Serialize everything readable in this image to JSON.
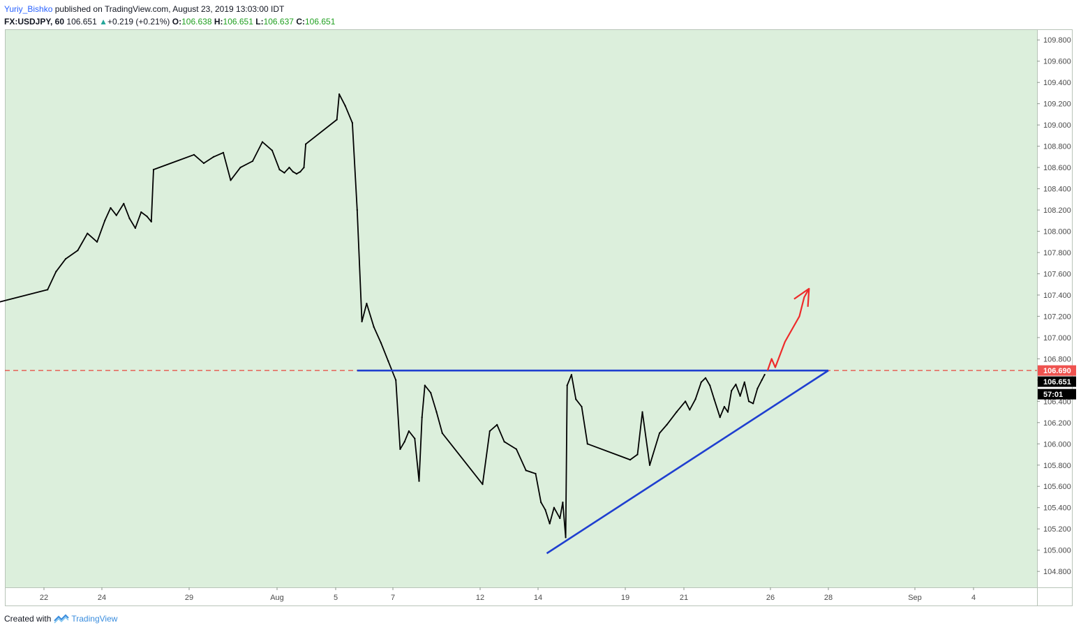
{
  "header": {
    "author": "Yuriy_Bishko",
    "published": "published on TradingView.com, August 23, 2019 13:03:00 IDT",
    "symbol": "FX:USDJPY, 60",
    "last": "106.651",
    "arrow": "▲",
    "change": "+0.219 (+0.21%)",
    "o_label": "O:",
    "o_value": "106.638",
    "h_label": "H:",
    "h_value": "106.651",
    "l_label": "L:",
    "l_value": "106.637",
    "c_label": "C:",
    "c_value": "106.651"
  },
  "footer": {
    "created_with": "Created with",
    "brand": "TradingView"
  },
  "colors": {
    "chart_bg": "#dcefdc",
    "candle": "#000000",
    "trendline": "#1f3fd0",
    "dashed_level": "#e8453c",
    "forecast_arrow": "#ee2a2a",
    "level_badge": "#ef5350",
    "price_badge": "#000000"
  },
  "chart_data": {
    "type": "line",
    "title": "",
    "xlabel": "",
    "ylabel": "",
    "ylim": [
      104.65,
      109.9
    ],
    "y_ticks": [
      "109.800",
      "109.600",
      "109.400",
      "109.200",
      "109.000",
      "108.800",
      "108.600",
      "108.400",
      "108.200",
      "108.000",
      "107.800",
      "107.600",
      "107.400",
      "107.200",
      "107.000",
      "106.800",
      "106.600",
      "106.400",
      "106.200",
      "106.000",
      "105.800",
      "105.600",
      "105.400",
      "105.200",
      "105.000",
      "104.800"
    ],
    "x_ticks": [
      {
        "label": "22",
        "date": "2019-07-22"
      },
      {
        "label": "24",
        "date": "2019-07-24"
      },
      {
        "label": "29",
        "date": "2019-07-29"
      },
      {
        "label": "Aug",
        "date": "2019-08-01"
      },
      {
        "label": "5",
        "date": "2019-08-05"
      },
      {
        "label": "7",
        "date": "2019-08-07"
      },
      {
        "label": "12",
        "date": "2019-08-12"
      },
      {
        "label": "14",
        "date": "2019-08-14"
      },
      {
        "label": "19",
        "date": "2019-08-19"
      },
      {
        "label": "21",
        "date": "2019-08-21"
      },
      {
        "label": "26",
        "date": "2019-08-26"
      },
      {
        "label": "28",
        "date": "2019-08-28"
      },
      {
        "label": "Sep",
        "date": "2019-09-02"
      },
      {
        "label": "4",
        "date": "2019-09-04"
      }
    ],
    "grid": false,
    "series": [
      {
        "values": [
          [
            "2019-07-19T12:00",
            107.97
          ],
          [
            "2019-07-19T18:00",
            107.75
          ],
          [
            "2019-07-19T23:00",
            107.3
          ],
          [
            "2019-07-22T03:00",
            107.45
          ],
          [
            "2019-07-22T10:00",
            107.62
          ],
          [
            "2019-07-22T18:00",
            107.74
          ],
          [
            "2019-07-23T04:00",
            107.82
          ],
          [
            "2019-07-23T12:00",
            107.98
          ],
          [
            "2019-07-23T20:00",
            107.9
          ],
          [
            "2019-07-24T04:00",
            108.1
          ],
          [
            "2019-07-24T12:00",
            108.22
          ],
          [
            "2019-07-24T20:00",
            108.15
          ],
          [
            "2019-07-25T06:00",
            108.26
          ],
          [
            "2019-07-25T14:00",
            108.12
          ],
          [
            "2019-07-25T22:00",
            108.03
          ],
          [
            "2019-07-26T06:00",
            108.18
          ],
          [
            "2019-07-26T14:00",
            108.14
          ],
          [
            "2019-07-26T20:00",
            108.09
          ],
          [
            "2019-07-26T23:00",
            108.58
          ],
          [
            "2019-07-29T04:00",
            108.72
          ],
          [
            "2019-07-29T12:00",
            108.64
          ],
          [
            "2019-07-29T20:00",
            108.7
          ],
          [
            "2019-07-30T04:00",
            108.74
          ],
          [
            "2019-07-30T10:00",
            108.48
          ],
          [
            "2019-07-30T18:00",
            108.6
          ],
          [
            "2019-07-31T04:00",
            108.66
          ],
          [
            "2019-07-31T12:00",
            108.84
          ],
          [
            "2019-07-31T20:00",
            108.76
          ],
          [
            "2019-08-01T04:00",
            108.58
          ],
          [
            "2019-08-01T12:00",
            108.55
          ],
          [
            "2019-08-01T20:00",
            108.6
          ],
          [
            "2019-08-02T02:00",
            108.56
          ],
          [
            "2019-08-02T08:00",
            108.54
          ],
          [
            "2019-08-02T14:00",
            108.56
          ],
          [
            "2019-08-02T20:00",
            108.6
          ],
          [
            "2019-08-02T23:00",
            108.82
          ],
          [
            "2019-08-05T01:00",
            109.05
          ],
          [
            "2019-08-05T03:00",
            109.29
          ],
          [
            "2019-08-05T08:00",
            109.18
          ],
          [
            "2019-08-05T14:00",
            109.02
          ],
          [
            "2019-08-05T18:00",
            108.2
          ],
          [
            "2019-08-05T22:00",
            107.15
          ],
          [
            "2019-08-06T02:00",
            107.32
          ],
          [
            "2019-08-06T08:00",
            107.1
          ],
          [
            "2019-08-06T14:00",
            106.95
          ],
          [
            "2019-08-06T20:00",
            106.78
          ],
          [
            "2019-08-07T04:00",
            106.6
          ],
          [
            "2019-08-07T10:00",
            105.95
          ],
          [
            "2019-08-07T16:00",
            106.02
          ],
          [
            "2019-08-07T22:00",
            106.12
          ],
          [
            "2019-08-08T06:00",
            106.05
          ],
          [
            "2019-08-08T12:00",
            105.65
          ],
          [
            "2019-08-08T16:00",
            106.25
          ],
          [
            "2019-08-08T20:00",
            106.55
          ],
          [
            "2019-08-09T04:00",
            106.48
          ],
          [
            "2019-08-09T12:00",
            106.3
          ],
          [
            "2019-08-09T20:00",
            106.1
          ],
          [
            "2019-08-12T02:00",
            105.62
          ],
          [
            "2019-08-12T08:00",
            106.12
          ],
          [
            "2019-08-12T14:00",
            106.18
          ],
          [
            "2019-08-12T20:00",
            106.02
          ],
          [
            "2019-08-13T06:00",
            105.95
          ],
          [
            "2019-08-13T14:00",
            105.75
          ],
          [
            "2019-08-13T22:00",
            105.72
          ],
          [
            "2019-08-14T04:00",
            105.45
          ],
          [
            "2019-08-14T10:00",
            105.38
          ],
          [
            "2019-08-14T16:00",
            105.25
          ],
          [
            "2019-08-14T22:00",
            105.4
          ],
          [
            "2019-08-15T06:00",
            105.3
          ],
          [
            "2019-08-15T10:00",
            105.45
          ],
          [
            "2019-08-15T14:00",
            105.12
          ],
          [
            "2019-08-15T16:00",
            106.55
          ],
          [
            "2019-08-15T22:00",
            106.65
          ],
          [
            "2019-08-16T04:00",
            106.42
          ],
          [
            "2019-08-16T12:00",
            106.35
          ],
          [
            "2019-08-16T20:00",
            106.0
          ],
          [
            "2019-08-19T04:00",
            105.85
          ],
          [
            "2019-08-19T10:00",
            105.9
          ],
          [
            "2019-08-19T14:00",
            106.3
          ],
          [
            "2019-08-19T20:00",
            105.8
          ],
          [
            "2019-08-20T04:00",
            106.1
          ],
          [
            "2019-08-20T10:00",
            106.18
          ],
          [
            "2019-08-20T18:00",
            106.3
          ],
          [
            "2019-08-21T02:00",
            106.4
          ],
          [
            "2019-08-21T08:00",
            106.32
          ],
          [
            "2019-08-21T16:00",
            106.42
          ],
          [
            "2019-08-22T00:00",
            106.58
          ],
          [
            "2019-08-22T06:00",
            106.62
          ],
          [
            "2019-08-22T12:00",
            106.55
          ],
          [
            "2019-08-22T18:00",
            106.42
          ],
          [
            "2019-08-23T02:00",
            106.25
          ],
          [
            "2019-08-23T08:00",
            106.35
          ],
          [
            "2019-08-23T13:00",
            106.3
          ],
          [
            "2019-08-23T18:00",
            106.5
          ],
          [
            "2019-08-24T00:00",
            106.56
          ],
          [
            "2019-08-24T06:00",
            106.45
          ],
          [
            "2019-08-24T12:00",
            106.58
          ],
          [
            "2019-08-24T18:00",
            106.4
          ],
          [
            "2019-08-25T00:00",
            106.38
          ],
          [
            "2019-08-25T06:00",
            106.52
          ],
          [
            "2019-08-25T12:00",
            106.6
          ],
          [
            "2019-08-25T16:00",
            106.651
          ]
        ]
      }
    ],
    "annotations": {
      "horizontal_level": 106.69,
      "resistance_line": {
        "from": [
          "2019-08-05T18:00",
          106.69
        ],
        "to": [
          "2019-08-28T00:00",
          106.69
        ]
      },
      "support_line": {
        "from": [
          "2019-08-14T12:00",
          104.97
        ],
        "to": [
          "2019-08-28T00:00",
          106.69
        ]
      },
      "forecast_arrow": [
        [
          "2019-08-25T20:00",
          106.69
        ],
        [
          "2019-08-26T01:00",
          106.8
        ],
        [
          "2019-08-26T04:00",
          106.72
        ],
        [
          "2019-08-26T12:00",
          106.96
        ],
        [
          "2019-08-27T00:00",
          107.2
        ],
        [
          "2019-08-27T04:00",
          107.38
        ],
        [
          "2019-08-27T08:00",
          107.46
        ]
      ]
    },
    "price_labels": {
      "level": "106.690",
      "last": "106.651",
      "countdown": "57:01"
    }
  }
}
